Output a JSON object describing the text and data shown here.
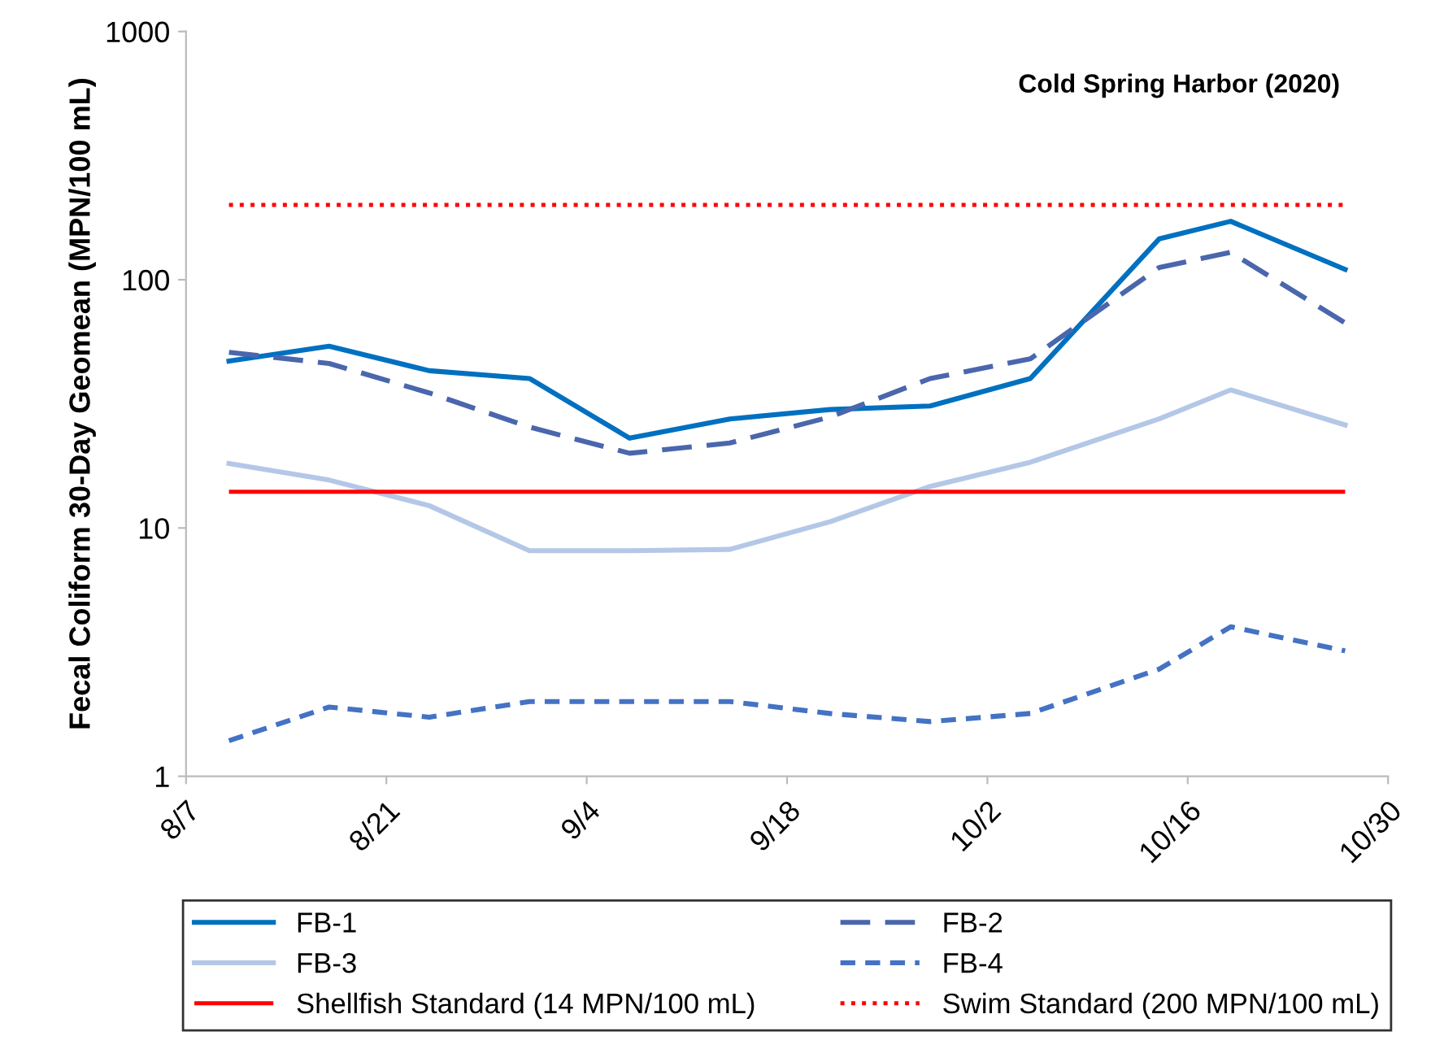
{
  "chart_data": {
    "type": "line",
    "title": "Cold Spring Harbor (2020)",
    "ylabel": "Fecal Coliform 30-Day Geomean (MPN/100 mL)",
    "x": [
      "2020-08-10",
      "2020-08-17",
      "2020-08-24",
      "2020-08-31",
      "2020-09-07",
      "2020-09-14",
      "2020-09-21",
      "2020-09-28",
      "2020-10-05",
      "2020-10-14",
      "2020-10-19",
      "2020-10-27"
    ],
    "series": [
      {
        "name": "FB-1",
        "color": "#0070c0",
        "line_style": "solid",
        "values": [
          47,
          54,
          43,
          40,
          23,
          27.5,
          30,
          31,
          40,
          146,
          172,
          110
        ]
      },
      {
        "name": "FB-2",
        "color": "#4a66ac",
        "line_style": "dashed",
        "values": [
          51,
          46,
          35,
          25.5,
          20,
          22,
          28,
          40,
          48,
          112,
          129,
          67
        ]
      },
      {
        "name": "FB-3",
        "color": "#b4c7e7",
        "line_style": "solid",
        "values": [
          18.2,
          15.6,
          12.3,
          8.1,
          8.1,
          8.2,
          10.6,
          14.7,
          18.4,
          27.5,
          36,
          26
        ]
      },
      {
        "name": "FB-4",
        "color": "#4472c4",
        "line_style": "dotted",
        "values": [
          1.39,
          1.9,
          1.73,
          2.0,
          2.0,
          2.0,
          1.79,
          1.66,
          1.79,
          2.7,
          4.0,
          3.2
        ]
      }
    ],
    "ref_lines": [
      {
        "axis": "y",
        "value": 14,
        "label": "Shellfish Standard (14 MPN/100 mL)",
        "color": "#ff0000",
        "line_style": "solid"
      },
      {
        "axis": "y",
        "value": 200,
        "label": "Swim Standard (200 MPN/100 mL)",
        "color": "#ff0000",
        "line_style": "dotted"
      }
    ],
    "log": "y",
    "ylim": [
      1,
      1000
    ],
    "yticks": [
      1,
      10,
      100,
      1000
    ],
    "xlim": [
      "2020-08-07",
      "2020-10-30"
    ],
    "xticks": [
      {
        "value": "2020-08-07",
        "label": "8/7"
      },
      {
        "value": "2020-08-21",
        "label": "8/21"
      },
      {
        "value": "2020-09-04",
        "label": "9/4"
      },
      {
        "value": "2020-09-18",
        "label": "9/18"
      },
      {
        "value": "2020-10-02",
        "label": "10/2"
      },
      {
        "value": "2020-10-16",
        "label": "10/16"
      },
      {
        "value": "2020-10-30",
        "label": "10/30"
      }
    ],
    "grid": false,
    "legend": "bottom"
  }
}
